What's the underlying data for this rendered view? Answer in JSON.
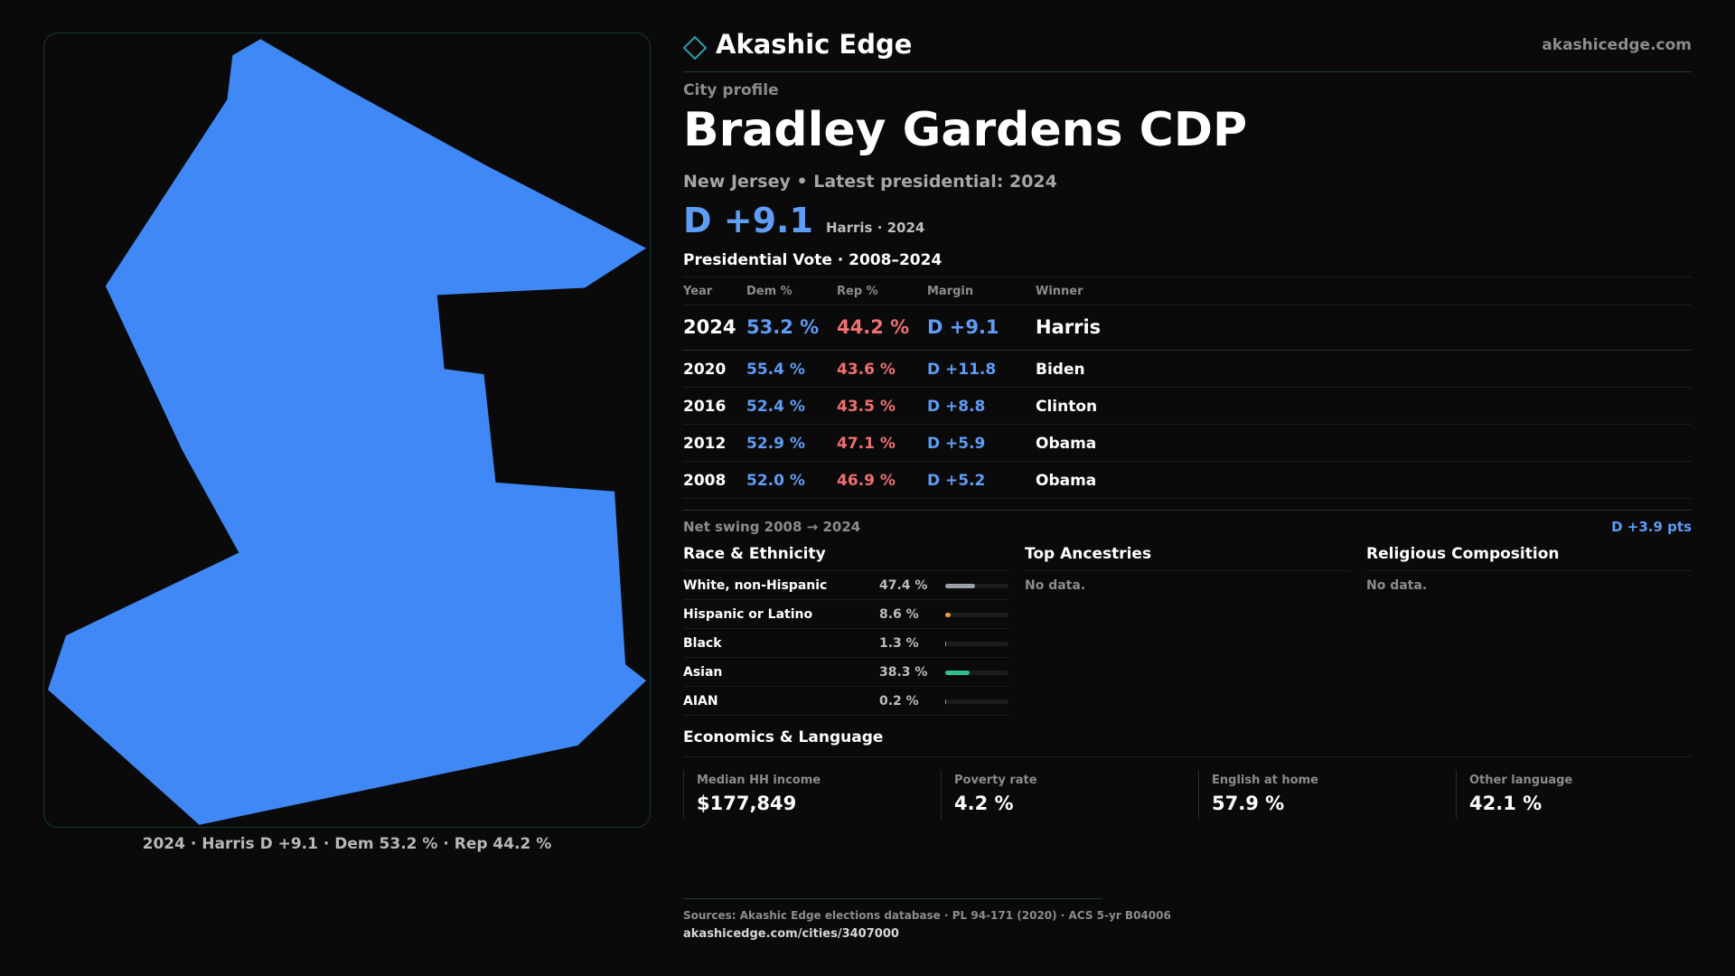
{
  "brand": {
    "name": "Akashic Edge",
    "url": "akashicedge.com"
  },
  "profile": {
    "eyebrow": "City profile",
    "title": "Bradley Gardens CDP",
    "subtitle": "New Jersey • Latest presidential: 2024",
    "margin": "D +9.1",
    "margin_sub": "Harris · 2024"
  },
  "map": {
    "caption": "2024 · Harris D +9.1 · Dem 53.2 % · Rep 44.2 %",
    "fill_color": "#3f88f5",
    "border_color": "#16383c"
  },
  "vote_table": {
    "title": "Presidential Vote · 2008–2024",
    "headers": {
      "year": "Year",
      "dem": "Dem %",
      "rep": "Rep %",
      "margin": "Margin",
      "winner": "Winner"
    },
    "rows": [
      {
        "year": "2024",
        "dem": "53.2 %",
        "rep": "44.2 %",
        "margin": "D +9.1",
        "winner": "Harris"
      },
      {
        "year": "2020",
        "dem": "55.4 %",
        "rep": "43.6 %",
        "margin": "D +11.8",
        "winner": "Biden"
      },
      {
        "year": "2016",
        "dem": "52.4 %",
        "rep": "43.5 %",
        "margin": "D +8.8",
        "winner": "Clinton"
      },
      {
        "year": "2012",
        "dem": "52.9 %",
        "rep": "47.1 %",
        "margin": "D +5.9",
        "winner": "Obama"
      },
      {
        "year": "2008",
        "dem": "52.0 %",
        "rep": "46.9 %",
        "margin": "D +5.2",
        "winner": "Obama"
      }
    ],
    "swing_label": "Net swing 2008 → 2024",
    "swing_value": "D +3.9 pts"
  },
  "race": {
    "title": "Race & Ethnicity",
    "rows": [
      {
        "label": "White, non-Hispanic",
        "pct": "47.4 %",
        "value": 47.4,
        "color": "#9aa0a6"
      },
      {
        "label": "Hispanic or Latino",
        "pct": "8.6 %",
        "value": 8.6,
        "color": "#e89a3c"
      },
      {
        "label": "Black",
        "pct": "1.3 %",
        "value": 1.3,
        "color": "#b07cf0"
      },
      {
        "label": "Asian",
        "pct": "38.3 %",
        "value": 38.3,
        "color": "#2fbf8a"
      },
      {
        "label": "AIAN",
        "pct": "0.2 %",
        "value": 0.2,
        "color": "#e07a3c"
      }
    ]
  },
  "ancestries": {
    "title": "Top Ancestries",
    "empty": "No data."
  },
  "religion": {
    "title": "Religious Composition",
    "empty": "No data."
  },
  "economics": {
    "title": "Economics & Language",
    "cards": [
      {
        "label": "Median HH income",
        "value": "$177,849"
      },
      {
        "label": "Poverty rate",
        "value": "4.2 %"
      },
      {
        "label": "English at home",
        "value": "57.9 %"
      },
      {
        "label": "Other language",
        "value": "42.1 %"
      }
    ]
  },
  "footer": {
    "sources": "Sources: Akashic Edge elections database · PL 94-171 (2020) · ACS 5-yr B04006",
    "url": "akashicedge.com/cities/3407000"
  }
}
